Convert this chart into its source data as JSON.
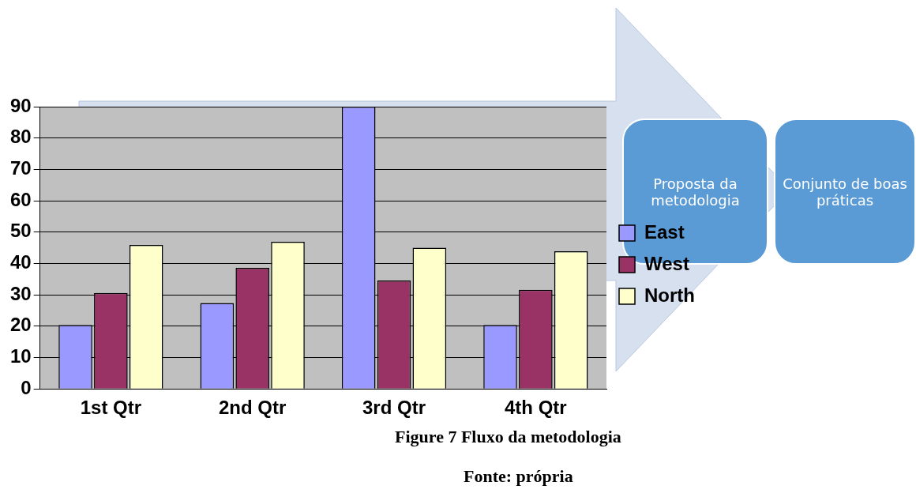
{
  "chart_data": {
    "type": "bar",
    "categories": [
      "1st Qtr",
      "2nd Qtr",
      "3rd Qtr",
      "4th Qtr"
    ],
    "series": [
      {
        "name": "East",
        "color": "#9999ff",
        "values": [
          20.4,
          27.4,
          90,
          20.4
        ]
      },
      {
        "name": "West",
        "color": "#993366",
        "values": [
          30.6,
          38.6,
          34.6,
          31.6
        ]
      },
      {
        "name": "North",
        "color": "#ffffcc",
        "values": [
          45.9,
          46.9,
          45,
          43.9
        ]
      }
    ],
    "ylim": [
      0,
      90
    ],
    "yticks": [
      0,
      10,
      20,
      30,
      40,
      50,
      60,
      70,
      80,
      90
    ],
    "grid": "y",
    "legend": "right",
    "annotations": [
      "Proposta da metodologia",
      "Conjunto de boas práticas",
      "Figure 7 Fluxo da metodologia",
      "Fonte: própria"
    ]
  }
}
